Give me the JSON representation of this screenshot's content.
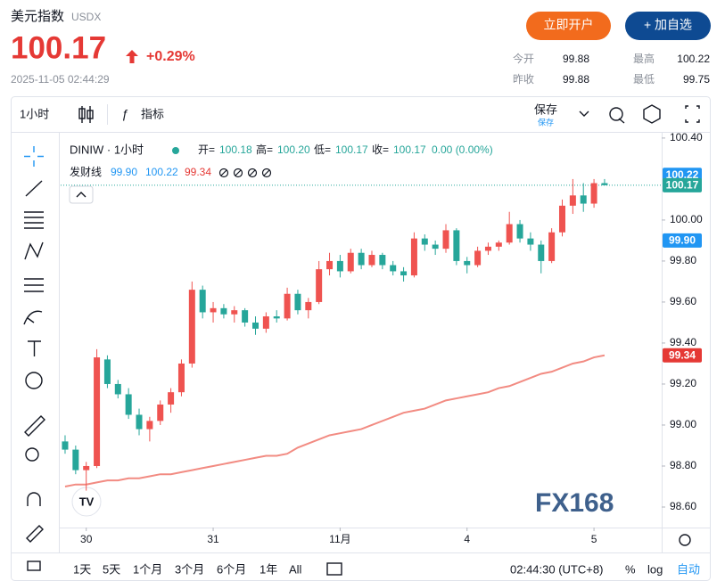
{
  "header": {
    "name": "美元指数",
    "code": "USDX",
    "price": "100.17",
    "change": "+0.29%",
    "timestamp": "2025-11-05 02:44:29",
    "buttons": [
      "立即开户",
      "+ 加自选"
    ],
    "stats": [
      {
        "label": "今开",
        "value": "99.88"
      },
      {
        "label": "最高",
        "value": "100.22"
      },
      {
        "label": "昨收",
        "value": "99.88"
      },
      {
        "label": "最低",
        "value": "99.75"
      }
    ]
  },
  "toolbar": {
    "interval": "1小时",
    "indicators": "指标",
    "save": "保存",
    "save_sub": "保存"
  },
  "chart_data": {
    "type": "candlestick",
    "symbol": "DINIW · 1小时",
    "ohlc_legend": [
      {
        "label": "开=",
        "value": "100.18"
      },
      {
        "label": "高=",
        "value": "100.20"
      },
      {
        "label": "低=",
        "value": "100.17"
      },
      {
        "label": "收=",
        "value": "100.17"
      }
    ],
    "change_text": "0.00 (0.00%)",
    "up_color": "#ef5350",
    "down_color": "#26a69a",
    "candles": [
      [
        98.92,
        98.95,
        98.86,
        98.88
      ],
      [
        98.88,
        98.9,
        98.76,
        98.78
      ],
      [
        98.78,
        98.82,
        98.68,
        98.8
      ],
      [
        98.8,
        99.37,
        98.79,
        99.33
      ],
      [
        99.32,
        99.34,
        99.18,
        99.2
      ],
      [
        99.2,
        99.22,
        99.13,
        99.15
      ],
      [
        99.15,
        99.18,
        99.03,
        99.05
      ],
      [
        99.05,
        99.08,
        98.95,
        98.98
      ],
      [
        98.98,
        99.04,
        98.92,
        99.02
      ],
      [
        99.02,
        99.12,
        99.0,
        99.1
      ],
      [
        99.1,
        99.18,
        99.06,
        99.16
      ],
      [
        99.16,
        99.32,
        99.14,
        99.3
      ],
      [
        99.3,
        99.7,
        99.28,
        99.66
      ],
      [
        99.66,
        99.68,
        99.52,
        99.55
      ],
      [
        99.55,
        99.6,
        99.5,
        99.57
      ],
      [
        99.57,
        99.59,
        99.52,
        99.54
      ],
      [
        99.54,
        99.58,
        99.5,
        99.56
      ],
      [
        99.56,
        99.57,
        99.48,
        99.5
      ],
      [
        99.5,
        99.53,
        99.44,
        99.47
      ],
      [
        99.47,
        99.55,
        99.45,
        99.53
      ],
      [
        99.53,
        99.56,
        99.5,
        99.52
      ],
      [
        99.52,
        99.67,
        99.51,
        99.64
      ],
      [
        99.64,
        99.66,
        99.54,
        99.56
      ],
      [
        99.56,
        99.62,
        99.52,
        99.6
      ],
      [
        99.6,
        99.8,
        99.59,
        99.76
      ],
      [
        99.76,
        99.84,
        99.73,
        99.8
      ],
      [
        99.8,
        99.83,
        99.72,
        99.75
      ],
      [
        99.75,
        99.86,
        99.74,
        99.84
      ],
      [
        99.84,
        99.86,
        99.76,
        99.78
      ],
      [
        99.78,
        99.85,
        99.77,
        99.83
      ],
      [
        99.83,
        99.84,
        99.76,
        99.78
      ],
      [
        99.78,
        99.8,
        99.73,
        99.75
      ],
      [
        99.75,
        99.77,
        99.7,
        99.73
      ],
      [
        99.73,
        99.94,
        99.72,
        99.91
      ],
      [
        99.91,
        99.93,
        99.85,
        99.88
      ],
      [
        99.88,
        99.9,
        99.83,
        99.86
      ],
      [
        99.86,
        99.98,
        99.84,
        99.95
      ],
      [
        99.95,
        99.96,
        99.78,
        99.8
      ],
      [
        99.8,
        99.82,
        99.74,
        99.78
      ],
      [
        99.78,
        99.87,
        99.77,
        99.85
      ],
      [
        99.85,
        99.89,
        99.83,
        99.87
      ],
      [
        99.87,
        99.9,
        99.85,
        99.89
      ],
      [
        99.89,
        100.04,
        99.88,
        99.98
      ],
      [
        99.98,
        100.0,
        99.89,
        99.91
      ],
      [
        99.91,
        99.94,
        99.85,
        99.88
      ],
      [
        99.88,
        99.9,
        99.74,
        99.8
      ],
      [
        99.8,
        99.96,
        99.79,
        99.94
      ],
      [
        99.94,
        100.1,
        99.92,
        100.07
      ],
      [
        100.07,
        100.2,
        100.03,
        100.12
      ],
      [
        100.12,
        100.18,
        100.04,
        100.08
      ],
      [
        100.08,
        100.2,
        100.06,
        100.18
      ],
      [
        100.18,
        100.2,
        100.17,
        100.17
      ]
    ],
    "indicator": {
      "name": "发财线",
      "color": "#f28b82",
      "legend_values": [
        {
          "value": "99.90",
          "color": "#2196f3"
        },
        {
          "value": "100.22",
          "color": "#2196f3"
        },
        {
          "value": "99.34",
          "color": "#e53935"
        }
      ],
      "values": [
        98.7,
        98.71,
        98.71,
        98.72,
        98.73,
        98.73,
        98.74,
        98.74,
        98.75,
        98.76,
        98.76,
        98.77,
        98.78,
        98.79,
        98.8,
        98.81,
        98.82,
        98.83,
        98.84,
        98.85,
        98.85,
        98.86,
        98.89,
        98.91,
        98.93,
        98.95,
        98.96,
        98.97,
        98.98,
        99.0,
        99.02,
        99.04,
        99.06,
        99.07,
        99.08,
        99.1,
        99.12,
        99.13,
        99.14,
        99.15,
        99.16,
        99.18,
        99.19,
        99.21,
        99.23,
        99.25,
        99.26,
        99.28,
        99.3,
        99.31,
        99.33,
        99.34
      ]
    },
    "xlim": [
      -0.42,
      56.4
    ],
    "xticks": [
      {
        "value": 2,
        "label": "30"
      },
      {
        "value": 14,
        "label": "31"
      },
      {
        "value": 26,
        "label": "11月"
      },
      {
        "value": 38,
        "label": "4"
      },
      {
        "value": 50,
        "label": "5"
      }
    ],
    "ylim": [
      98.5,
      100.43
    ],
    "yticks": [
      {
        "value": 100.4,
        "label": "100.40"
      },
      {
        "value": 100.0,
        "label": "100.00"
      },
      {
        "value": 99.8,
        "label": "99.80"
      },
      {
        "value": 99.6,
        "label": "99.60"
      },
      {
        "value": 99.4,
        "label": "99.40"
      },
      {
        "value": 99.2,
        "label": "99.20"
      },
      {
        "value": 99.0,
        "label": "99.00"
      },
      {
        "value": 98.8,
        "label": "98.80"
      },
      {
        "value": 98.6,
        "label": "98.60"
      }
    ],
    "price_badges": [
      {
        "value": 100.22,
        "label": "100.22",
        "color": "#2196f3"
      },
      {
        "value": 100.17,
        "label": "100.17",
        "color": "#26a69a"
      },
      {
        "value": 99.9,
        "label": "99.90",
        "color": "#2196f3"
      },
      {
        "value": 99.34,
        "label": "99.34",
        "color": "#e53935"
      }
    ],
    "last_price": 100.17,
    "grid": false,
    "watermark": "FX168"
  },
  "footer": {
    "ranges": [
      "1天",
      "5天",
      "1个月",
      "3个月",
      "6个月",
      "1年",
      "All"
    ],
    "clock": "02:44:30 (UTC+8)",
    "options": [
      "%",
      "log",
      "自动"
    ]
  }
}
